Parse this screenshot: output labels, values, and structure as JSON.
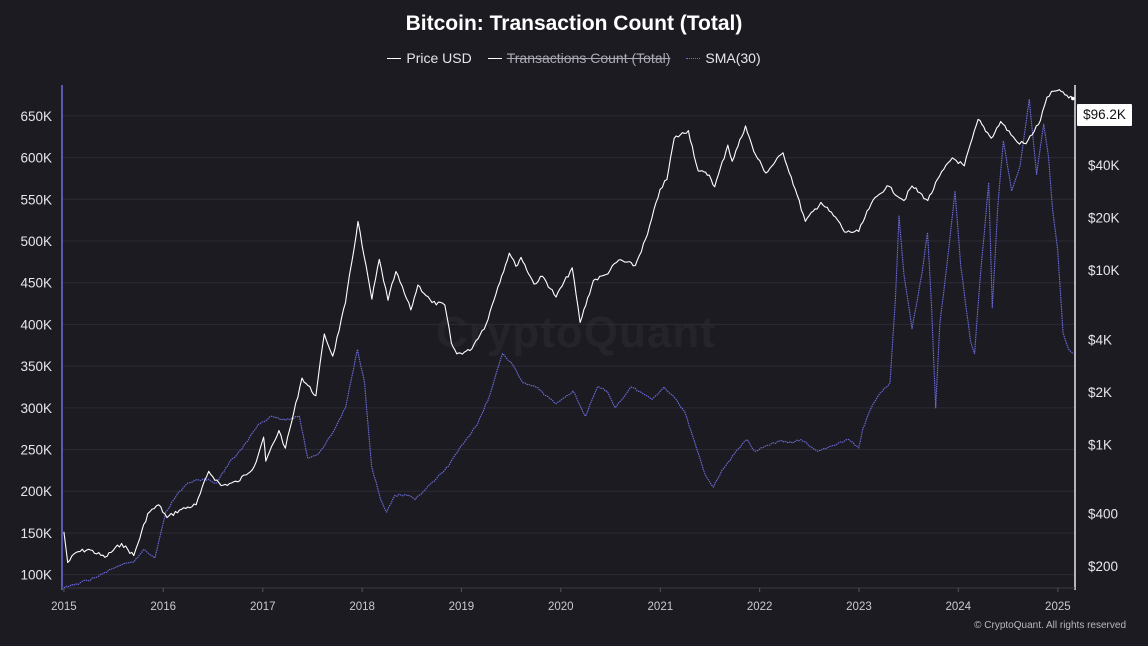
{
  "title": "Bitcoin: Transaction Count (Total)",
  "legend": [
    {
      "label": "Price USD",
      "color": "#ffffff",
      "style": "solid",
      "enabled": true
    },
    {
      "label": "Transactions Count (Total)",
      "color": "#ffffff",
      "style": "solid",
      "enabled": false
    },
    {
      "label": "SMA(30)",
      "color": "#6c6ee0",
      "style": "dotted",
      "enabled": true
    }
  ],
  "price_badge": "$96.2K",
  "watermark": "CryptoQuant",
  "copyright": "© CryptoQuant. All rights reserved",
  "chart_data": {
    "type": "line",
    "title": "Bitcoin: Transaction Count (Total)",
    "x_range": [
      "2014-12-25",
      "2025-03-05"
    ],
    "x_ticks": [
      "2015",
      "2016",
      "2017",
      "2018",
      "2019",
      "2020",
      "2021",
      "2022",
      "2023",
      "2024",
      "2025"
    ],
    "left_axis": {
      "ticks": [
        100000,
        150000,
        200000,
        250000,
        300000,
        350000,
        400000,
        450000,
        500000,
        550000,
        600000,
        650000
      ],
      "tick_labels": [
        "100K",
        "150K",
        "200K",
        "250K",
        "300K",
        "350K",
        "400K",
        "450K",
        "500K",
        "550K",
        "600K",
        "650K"
      ],
      "range": [
        84000,
        687000
      ]
    },
    "right_axis": {
      "scale": "log",
      "ticks": [
        200,
        400,
        1000,
        2000,
        4000,
        10000,
        20000,
        40000
      ],
      "tick_labels": [
        "$200",
        "$400",
        "$1K",
        "$2K",
        "$4K",
        "$10K",
        "$20K",
        "$40K"
      ],
      "range": [
        150,
        115000
      ]
    },
    "grid": true,
    "legend_position": "top-center",
    "series": [
      {
        "name": "Price USD",
        "axis": "right",
        "color": "#ffffff",
        "points": [
          [
            "2015-01-01",
            315
          ],
          [
            "2015-01-15",
            210
          ],
          [
            "2015-02-15",
            240
          ],
          [
            "2015-04-01",
            250
          ],
          [
            "2015-06-01",
            225
          ],
          [
            "2015-08-01",
            270
          ],
          [
            "2015-09-15",
            230
          ],
          [
            "2015-11-05",
            400
          ],
          [
            "2015-12-15",
            450
          ],
          [
            "2016-01-15",
            380
          ],
          [
            "2016-03-01",
            420
          ],
          [
            "2016-05-01",
            450
          ],
          [
            "2016-06-16",
            700
          ],
          [
            "2016-08-01",
            580
          ],
          [
            "2016-10-01",
            610
          ],
          [
            "2016-12-01",
            750
          ],
          [
            "2017-01-04",
            1100
          ],
          [
            "2017-01-12",
            800
          ],
          [
            "2017-03-01",
            1200
          ],
          [
            "2017-03-25",
            950
          ],
          [
            "2017-05-25",
            2400
          ],
          [
            "2017-07-15",
            1900
          ],
          [
            "2017-08-15",
            4300
          ],
          [
            "2017-09-15",
            3200
          ],
          [
            "2017-11-01",
            6500
          ],
          [
            "2017-12-17",
            19000
          ],
          [
            "2018-01-01",
            13800
          ],
          [
            "2018-02-06",
            6800
          ],
          [
            "2018-03-05",
            11500
          ],
          [
            "2018-04-06",
            6700
          ],
          [
            "2018-05-05",
            9800
          ],
          [
            "2018-06-29",
            5900
          ],
          [
            "2018-07-25",
            8200
          ],
          [
            "2018-09-15",
            6500
          ],
          [
            "2018-11-01",
            6300
          ],
          [
            "2018-11-25",
            3800
          ],
          [
            "2018-12-15",
            3300
          ],
          [
            "2019-02-01",
            3450
          ],
          [
            "2019-04-02",
            4900
          ],
          [
            "2019-05-15",
            8000
          ],
          [
            "2019-06-26",
            12500
          ],
          [
            "2019-07-20",
            10500
          ],
          [
            "2019-08-08",
            11800
          ],
          [
            "2019-09-25",
            8300
          ],
          [
            "2019-10-26",
            9200
          ],
          [
            "2019-12-15",
            7000
          ],
          [
            "2020-02-12",
            10300
          ],
          [
            "2020-03-12",
            5000
          ],
          [
            "2020-04-30",
            8700
          ],
          [
            "2020-06-15",
            9400
          ],
          [
            "2020-08-01",
            11400
          ],
          [
            "2020-10-01",
            10600
          ],
          [
            "2020-11-15",
            16000
          ],
          [
            "2020-12-31",
            29000
          ],
          [
            "2021-01-25",
            33000
          ],
          [
            "2021-02-21",
            57000
          ],
          [
            "2021-04-14",
            63000
          ],
          [
            "2021-05-20",
            37000
          ],
          [
            "2021-06-30",
            35000
          ],
          [
            "2021-07-20",
            30000
          ],
          [
            "2021-09-06",
            52000
          ],
          [
            "2021-09-22",
            42000
          ],
          [
            "2021-11-10",
            67000
          ],
          [
            "2021-12-10",
            48000
          ],
          [
            "2022-01-24",
            36000
          ],
          [
            "2022-03-28",
            47000
          ],
          [
            "2022-05-12",
            29000
          ],
          [
            "2022-06-18",
            19000
          ],
          [
            "2022-08-14",
            24400
          ],
          [
            "2022-10-15",
            19300
          ],
          [
            "2022-11-09",
            16500
          ],
          [
            "2022-12-31",
            16600
          ],
          [
            "2023-02-15",
            24000
          ],
          [
            "2023-04-14",
            30400
          ],
          [
            "2023-06-15",
            25000
          ],
          [
            "2023-07-15",
            30300
          ],
          [
            "2023-09-11",
            25000
          ],
          [
            "2023-10-24",
            34500
          ],
          [
            "2023-12-10",
            44000
          ],
          [
            "2024-01-23",
            39500
          ],
          [
            "2024-03-14",
            73000
          ],
          [
            "2024-05-01",
            57000
          ],
          [
            "2024-06-05",
            71000
          ],
          [
            "2024-08-05",
            54000
          ],
          [
            "2024-09-06",
            53000
          ],
          [
            "2024-10-29",
            72000
          ],
          [
            "2024-11-22",
            98000
          ],
          [
            "2024-12-17",
            106000
          ],
          [
            "2025-01-20",
            105000
          ],
          [
            "2025-02-10",
            97000
          ],
          [
            "2025-02-25",
            96200
          ]
        ]
      },
      {
        "name": "SMA(30)",
        "axis": "left",
        "color": "#6c6ee0",
        "points": [
          [
            "2015-01-01",
            84000
          ],
          [
            "2015-03-01",
            90000
          ],
          [
            "2015-05-01",
            97000
          ],
          [
            "2015-07-15",
            110000
          ],
          [
            "2015-09-15",
            115000
          ],
          [
            "2015-10-20",
            130000
          ],
          [
            "2015-12-01",
            120000
          ],
          [
            "2016-01-10",
            175000
          ],
          [
            "2016-03-01",
            200000
          ],
          [
            "2016-04-01",
            210000
          ],
          [
            "2016-06-01",
            215000
          ],
          [
            "2016-07-15",
            210000
          ],
          [
            "2016-09-01",
            235000
          ],
          [
            "2016-10-15",
            250000
          ],
          [
            "2016-12-15",
            280000
          ],
          [
            "2017-02-01",
            290000
          ],
          [
            "2017-03-25",
            285000
          ],
          [
            "2017-05-15",
            290000
          ],
          [
            "2017-06-15",
            240000
          ],
          [
            "2017-07-25",
            245000
          ],
          [
            "2017-09-15",
            270000
          ],
          [
            "2017-11-01",
            300000
          ],
          [
            "2017-12-15",
            370000
          ],
          [
            "2018-01-10",
            330000
          ],
          [
            "2018-02-05",
            230000
          ],
          [
            "2018-03-10",
            190000
          ],
          [
            "2018-04-01",
            175000
          ],
          [
            "2018-05-01",
            195000
          ],
          [
            "2018-06-15",
            195000
          ],
          [
            "2018-07-15",
            190000
          ],
          [
            "2018-08-15",
            200000
          ],
          [
            "2018-10-01",
            215000
          ],
          [
            "2018-11-15",
            230000
          ],
          [
            "2019-01-01",
            255000
          ],
          [
            "2019-03-01",
            280000
          ],
          [
            "2019-04-15",
            315000
          ],
          [
            "2019-06-01",
            365000
          ],
          [
            "2019-07-01",
            355000
          ],
          [
            "2019-08-15",
            330000
          ],
          [
            "2019-10-01",
            325000
          ],
          [
            "2019-12-15",
            305000
          ],
          [
            "2020-02-15",
            320000
          ],
          [
            "2020-04-01",
            290000
          ],
          [
            "2020-05-15",
            325000
          ],
          [
            "2020-06-20",
            320000
          ],
          [
            "2020-07-20",
            300000
          ],
          [
            "2020-09-15",
            325000
          ],
          [
            "2020-10-25",
            318000
          ],
          [
            "2020-12-01",
            310000
          ],
          [
            "2021-01-15",
            325000
          ],
          [
            "2021-02-15",
            315000
          ],
          [
            "2021-04-01",
            295000
          ],
          [
            "2021-05-01",
            265000
          ],
          [
            "2021-06-15",
            220000
          ],
          [
            "2021-07-15",
            205000
          ],
          [
            "2021-08-15",
            225000
          ],
          [
            "2021-10-01",
            245000
          ],
          [
            "2021-11-15",
            262000
          ],
          [
            "2021-12-15",
            248000
          ],
          [
            "2022-02-01",
            255000
          ],
          [
            "2022-03-15",
            260000
          ],
          [
            "2022-05-01",
            258000
          ],
          [
            "2022-06-01",
            262000
          ],
          [
            "2022-08-01",
            248000
          ],
          [
            "2022-10-01",
            255000
          ],
          [
            "2022-11-25",
            262000
          ],
          [
            "2022-12-31",
            252000
          ],
          [
            "2023-01-15",
            275000
          ],
          [
            "2023-02-15",
            300000
          ],
          [
            "2023-03-20",
            318000
          ],
          [
            "2023-04-25",
            330000
          ],
          [
            "2023-05-15",
            430000
          ],
          [
            "2023-05-28",
            530000
          ],
          [
            "2023-06-15",
            460000
          ],
          [
            "2023-07-15",
            395000
          ],
          [
            "2023-08-20",
            460000
          ],
          [
            "2023-09-10",
            510000
          ],
          [
            "2023-09-25",
            420000
          ],
          [
            "2023-10-10",
            300000
          ],
          [
            "2023-10-25",
            400000
          ],
          [
            "2023-11-20",
            470000
          ],
          [
            "2023-12-20",
            560000
          ],
          [
            "2024-01-10",
            470000
          ],
          [
            "2024-02-15",
            380000
          ],
          [
            "2024-03-01",
            365000
          ],
          [
            "2024-03-20",
            450000
          ],
          [
            "2024-04-22",
            570000
          ],
          [
            "2024-05-05",
            420000
          ],
          [
            "2024-05-25",
            540000
          ],
          [
            "2024-06-15",
            620000
          ],
          [
            "2024-07-15",
            560000
          ],
          [
            "2024-08-15",
            590000
          ],
          [
            "2024-09-18",
            670000
          ],
          [
            "2024-10-15",
            580000
          ],
          [
            "2024-11-10",
            640000
          ],
          [
            "2024-11-28",
            600000
          ],
          [
            "2024-12-12",
            540000
          ],
          [
            "2024-12-31",
            490000
          ],
          [
            "2025-01-20",
            390000
          ],
          [
            "2025-02-10",
            370000
          ],
          [
            "2025-02-28",
            365000
          ]
        ]
      }
    ]
  }
}
